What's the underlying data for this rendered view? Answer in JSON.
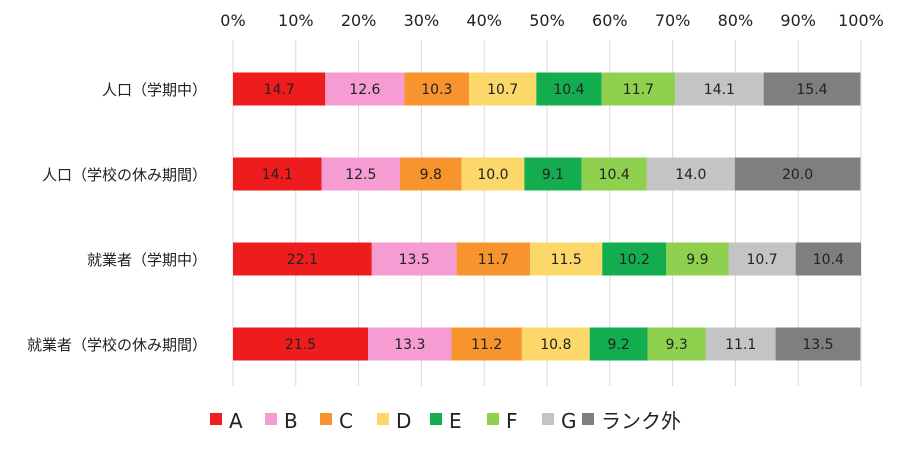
{
  "chart_data": {
    "type": "bar",
    "orientation": "horizontal",
    "stacked": true,
    "percent": true,
    "xlim": [
      0,
      100
    ],
    "x_ticks": [
      "0%",
      "10%",
      "20%",
      "30%",
      "40%",
      "50%",
      "60%",
      "70%",
      "80%",
      "90%",
      "100%"
    ],
    "x_axis_position": "top",
    "grid": true,
    "legend_position": "bottom",
    "categories": [
      "人口（学期中）",
      "人口（学校の休み期間）",
      "就業者（学期中）",
      "就業者（学校の休み期間）"
    ],
    "series": [
      {
        "name": "A",
        "color": "#ee1c1c",
        "label_color": "#222222",
        "values": [
          14.7,
          14.1,
          22.1,
          21.5
        ]
      },
      {
        "name": "B",
        "color": "#f59cd2",
        "label_color": "#222222",
        "values": [
          12.6,
          12.5,
          13.5,
          13.3
        ]
      },
      {
        "name": "C",
        "color": "#f7942e",
        "label_color": "#222222",
        "values": [
          10.3,
          9.8,
          11.7,
          11.2
        ]
      },
      {
        "name": "D",
        "color": "#fcd86a",
        "label_color": "#222222",
        "values": [
          10.7,
          10.0,
          11.5,
          10.8
        ]
      },
      {
        "name": "E",
        "color": "#13ad4f",
        "label_color": "#222222",
        "values": [
          10.4,
          9.1,
          10.2,
          9.2
        ]
      },
      {
        "name": "F",
        "color": "#8fd14f",
        "label_color": "#222222",
        "values": [
          11.7,
          10.4,
          9.9,
          9.3
        ]
      },
      {
        "name": "G",
        "color": "#c4c4c4",
        "label_color": "#222222",
        "values": [
          14.1,
          14.0,
          10.7,
          11.1
        ]
      },
      {
        "name": "ランク外",
        "color": "#7f7f7f",
        "label_color": "#222222",
        "values": [
          15.4,
          20.0,
          10.4,
          13.5
        ]
      }
    ]
  }
}
